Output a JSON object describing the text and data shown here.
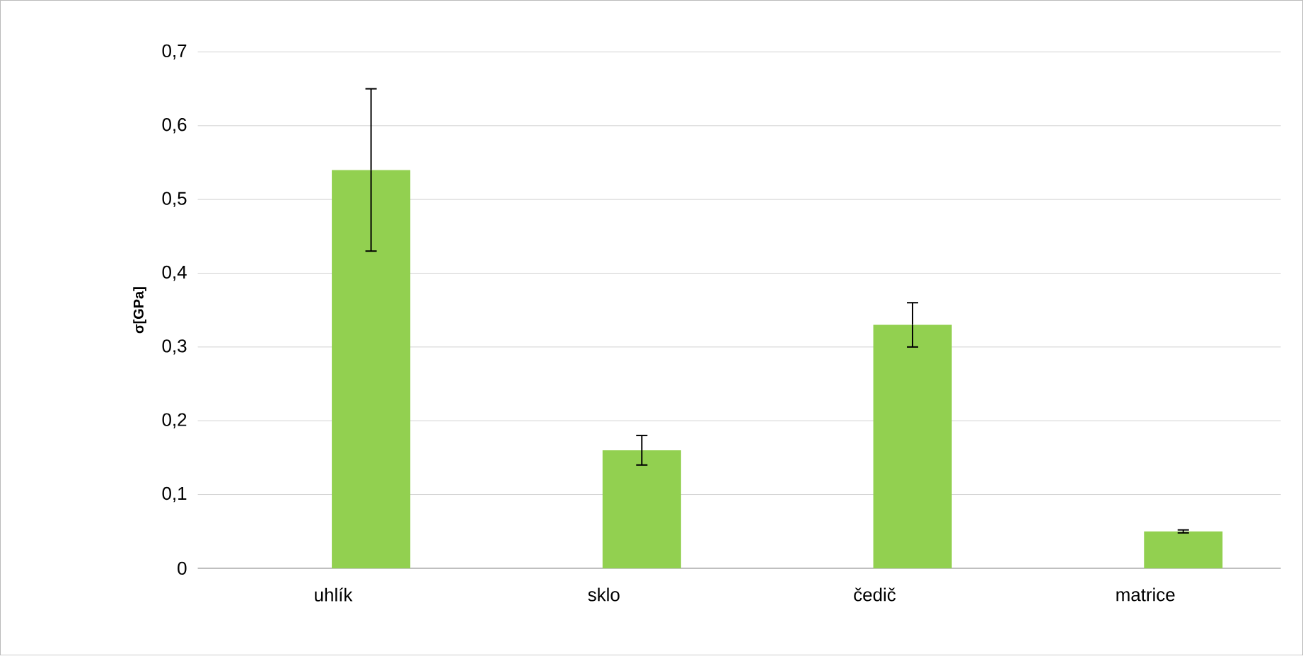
{
  "chart_data": {
    "type": "bar",
    "ylabel": "σ[GPa]",
    "categories": [
      "uhlík",
      "sklo",
      "čedič",
      "matrice"
    ],
    "values": [
      0.54,
      0.16,
      0.33,
      0.05
    ],
    "errors": [
      0.11,
      0.02,
      0.03,
      0.002
    ],
    "color": "#92d050",
    "ylim": [
      0,
      0.7
    ],
    "yticks": [
      0,
      {
        "value": 0.1,
        "label": "0,1"
      },
      {
        "value": 0.2,
        "label": "0,2"
      },
      {
        "value": 0.3,
        "label": "0,3"
      },
      {
        "value": 0.4,
        "label": "0,4"
      },
      {
        "value": 0.5,
        "label": "0,5"
      },
      {
        "value": 0.6,
        "label": "0,6"
      },
      {
        "value": 0.7,
        "label": "0,7"
      }
    ],
    "grid": "y"
  }
}
